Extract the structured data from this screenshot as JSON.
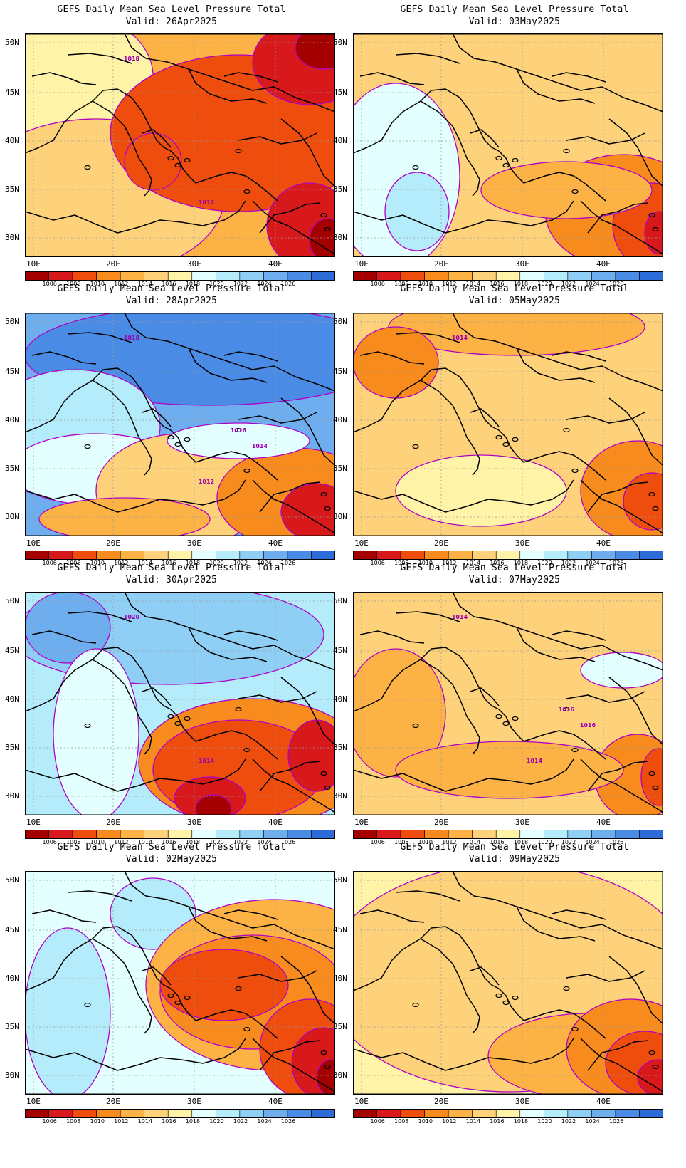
{
  "title": "GEFS Daily Mean Sea Level Pressure Total",
  "colorbar": {
    "levels": [
      "1006",
      "1008",
      "1010",
      "1012",
      "1014",
      "1016",
      "1018",
      "1020",
      "1022",
      "1024",
      "1026"
    ],
    "colors": [
      "#a50000",
      "#d7191c",
      "#ee4d0e",
      "#f88b1d",
      "#fcb245",
      "#fed27a",
      "#fff3a8",
      "#e3ffff",
      "#b4ecfb",
      "#90cff5",
      "#6eadee",
      "#4a8be6",
      "#2c6cd8"
    ]
  },
  "axes": {
    "lat_labels": [
      "50N",
      "45N",
      "40N",
      "35N",
      "30N"
    ],
    "lon_labels": [
      "10E",
      "20E",
      "30E",
      "40E"
    ]
  },
  "panels": [
    {
      "valid": "Valid: 26Apr2025",
      "contour_labels": [
        "1018",
        "1012"
      ],
      "dominant": "orange-red"
    },
    {
      "valid": "Valid: 03May2025",
      "contour_labels": [],
      "dominant": "yellow"
    },
    {
      "valid": "Valid: 28Apr2025",
      "contour_labels": [
        "1018",
        "1012",
        "1016",
        "1014"
      ],
      "dominant": "blue"
    },
    {
      "valid": "Valid: 05May2025",
      "contour_labels": [
        "1014"
      ],
      "dominant": "yellow"
    },
    {
      "valid": "Valid: 30Apr2025",
      "contour_labels": [
        "1020",
        "1014"
      ],
      "dominant": "blue-orange"
    },
    {
      "valid": "Valid: 07May2025",
      "contour_labels": [
        "1014",
        "1014",
        "1016",
        "1016"
      ],
      "dominant": "yellow"
    },
    {
      "valid": "Valid: 02May2025",
      "contour_labels": [],
      "dominant": "light-blue-orange"
    },
    {
      "valid": "Valid: 09May2025",
      "contour_labels": [],
      "dominant": "yellow"
    }
  ]
}
